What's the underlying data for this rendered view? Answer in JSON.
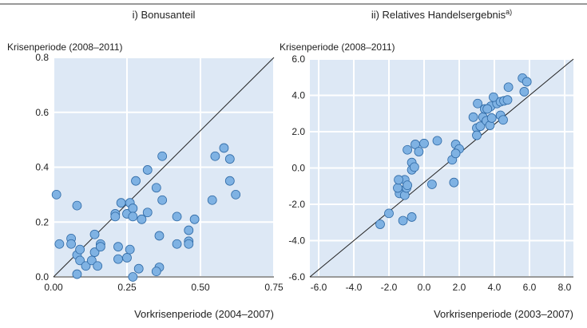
{
  "chart_data": [
    {
      "type": "scatter",
      "title": "i) Bonusanteil",
      "ylabel": "Krisenperiode (2008–2011)",
      "xlabel": "Vorkrisenperiode (2004–2007)",
      "xlim": [
        0,
        0.75
      ],
      "ylim": [
        0,
        0.8
      ],
      "xticks": [
        {
          "value": 0,
          "label": "0.00"
        },
        0.25,
        {
          "value": 0.5,
          "label": "0.50"
        },
        0.75
      ],
      "yticks": [
        {
          "value": 0,
          "label": "0.0"
        },
        0.2,
        0.4,
        0.6,
        0.8
      ],
      "color": "#7fb2e3",
      "grid": true,
      "x": [
        0.01,
        0.02,
        0.06,
        0.06,
        0.08,
        0.08,
        0.09,
        0.09,
        0.08,
        0.11,
        0.13,
        0.14,
        0.14,
        0.15,
        0.16,
        0.16,
        0.21,
        0.21,
        0.22,
        0.22,
        0.23,
        0.25,
        0.25,
        0.26,
        0.26,
        0.27,
        0.27,
        0.27,
        0.28,
        0.29,
        0.3,
        0.32,
        0.32,
        0.35,
        0.36,
        0.36,
        0.37,
        0.37,
        0.35,
        0.42,
        0.42,
        0.46,
        0.46,
        0.46,
        0.48,
        0.54,
        0.55,
        0.58,
        0.6,
        0.6,
        0.62
      ],
      "values": [
        0.3,
        0.12,
        0.14,
        0.12,
        0.26,
        0.08,
        0.1,
        0.06,
        0.01,
        0.04,
        0.06,
        0.09,
        0.155,
        0.04,
        0.12,
        0.11,
        0.23,
        0.22,
        0.11,
        0.065,
        0.27,
        0.07,
        0.23,
        0.1,
        0.27,
        0.25,
        0.22,
        0.0,
        0.35,
        0.03,
        0.21,
        0.39,
        0.235,
        0.325,
        0.15,
        0.035,
        0.28,
        0.44,
        0.02,
        0.22,
        0.12,
        0.17,
        0.13,
        0.12,
        0.21,
        0.28,
        0.44,
        0.47,
        0.43,
        0.35,
        0.3
      ]
    },
    {
      "type": "scatter",
      "title": "ii) Relatives Handelsergebnis",
      "title_sup": "a)",
      "ylabel": "Krisenperiode (2008–2011)",
      "xlabel": "Vorkrisenperiode (2003–2007)",
      "xlim": [
        -6.5,
        8.5
      ],
      "ylim": [
        -6,
        6
      ],
      "xticks": [
        {
          "value": -6,
          "label": "-6.0"
        },
        {
          "value": -4,
          "label": "-4.0"
        },
        {
          "value": -2,
          "label": "-2.0"
        },
        {
          "value": 0,
          "label": "0.0"
        },
        {
          "value": 2,
          "label": "2.0"
        },
        {
          "value": 4,
          "label": "4.0"
        },
        {
          "value": 6,
          "label": "6.0"
        },
        {
          "value": 8,
          "label": "8.0"
        }
      ],
      "yticks": [
        {
          "value": -6,
          "label": "-6.0"
        },
        {
          "value": -4,
          "label": "-4.0"
        },
        {
          "value": -2,
          "label": "-2.0"
        },
        {
          "value": 0,
          "label": "0.0"
        },
        {
          "value": 2,
          "label": "2.0"
        },
        {
          "value": 4,
          "label": "4.0"
        },
        {
          "value": 6,
          "label": "6.0"
        }
      ],
      "color": "#7fb2e3",
      "grid": true,
      "x": [
        -2.5,
        -2.0,
        -1.2,
        -0.7,
        -1.4,
        -1.5,
        -1.1,
        -1.45,
        -1.1,
        -1.0,
        -0.95,
        -0.7,
        -0.7,
        -0.55,
        -0.95,
        -0.5,
        0,
        -0.3,
        0.45,
        0.75,
        1.6,
        1.7,
        1.8,
        2.0,
        1.8,
        2.8,
        3.0,
        3.0,
        3.2,
        3.05,
        3.35,
        3.45,
        3.55,
        3.75,
        3.85,
        3.8,
        3.6,
        4.15,
        3.95,
        4.35,
        4.55,
        4.75,
        4.35,
        4.5,
        4.8,
        5.7,
        5.6,
        5.85
      ],
      "values": [
        -3.1,
        -2.5,
        -2.9,
        -2.7,
        -1.4,
        -1.1,
        -0.65,
        -0.65,
        -1.5,
        -1.1,
        -0.95,
        0.3,
        -0.1,
        0.05,
        1.0,
        1.3,
        1.35,
        0.9,
        -0.9,
        1.5,
        0.45,
        -0.8,
        1.3,
        1.05,
        0.8,
        2.8,
        2.2,
        1.8,
        2.3,
        3.55,
        2.8,
        3.25,
        2.6,
        2.35,
        2.75,
        3.4,
        3.25,
        3.55,
        3.9,
        3.65,
        3.7,
        3.75,
        2.9,
        2.65,
        4.45,
        4.2,
        4.95,
        4.75
      ]
    }
  ]
}
